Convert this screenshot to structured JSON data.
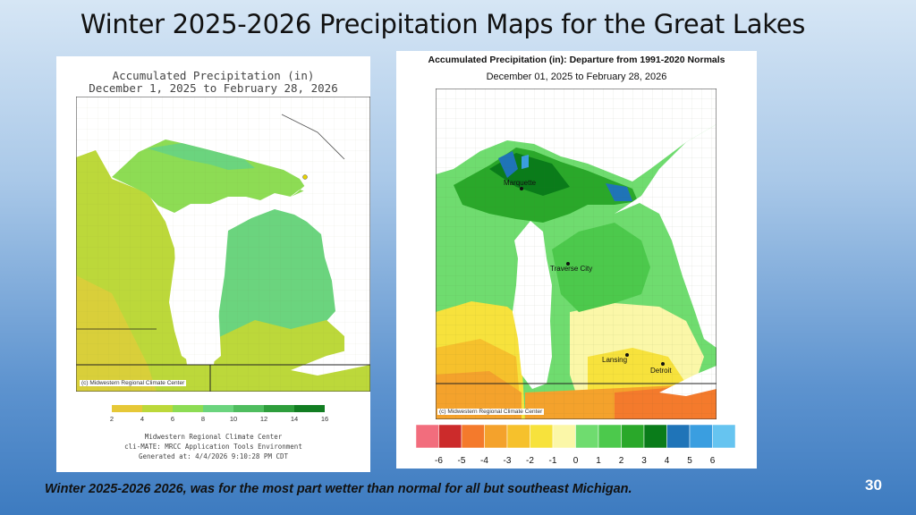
{
  "slide": {
    "title": "Winter 2025-2026 Precipitation Maps for the  Great Lakes",
    "caption": "Winter 2025-2026 2026, was for the most part wetter than normal for all but southeast Michigan.",
    "number": "30"
  },
  "left_map": {
    "title": "Accumulated Precipitation (in)",
    "subtitle": "December 1, 2025 to February 28, 2026",
    "credit": "(c) Midwestern Regional Climate Center",
    "legend": {
      "ticks": [
        "2",
        "4",
        "6",
        "8",
        "10",
        "12",
        "14",
        "16"
      ],
      "colors": [
        "#e6c837",
        "#bcd83a",
        "#8ddc54",
        "#6bd47e",
        "#4fbd5f",
        "#2e9e3c",
        "#127d22"
      ]
    },
    "footer": [
      "Midwestern Regional Climate Center",
      "cli-MATE: MRCC Application Tools Environment",
      "Generated at: 4/4/2026 9:10:28 PM CDT"
    ]
  },
  "right_map": {
    "title": "Accumulated Precipitation (in): Departure from 1991-2020 Normals",
    "subtitle": "December 01, 2025 to February 28, 2026",
    "credit": "(c) Midwestern Regional Climate Center",
    "cities": [
      "Marquette",
      "Traverse City",
      "Lansing",
      "Detroit"
    ],
    "legend": {
      "ticks": [
        "-6",
        "-5",
        "-4",
        "-3",
        "-2",
        "-1",
        "0",
        "1",
        "2",
        "3",
        "4",
        "5",
        "6"
      ],
      "colors": [
        "#f26d7d",
        "#cc2b2b",
        "#f47a2c",
        "#f4a22c",
        "#f6c12c",
        "#f7e23c",
        "#fbf7a8",
        "#6fdc6f",
        "#4cc94c",
        "#2aa82a",
        "#0a7c1a",
        "#1f74b8",
        "#3a9ee0",
        "#66c4f0"
      ]
    }
  }
}
